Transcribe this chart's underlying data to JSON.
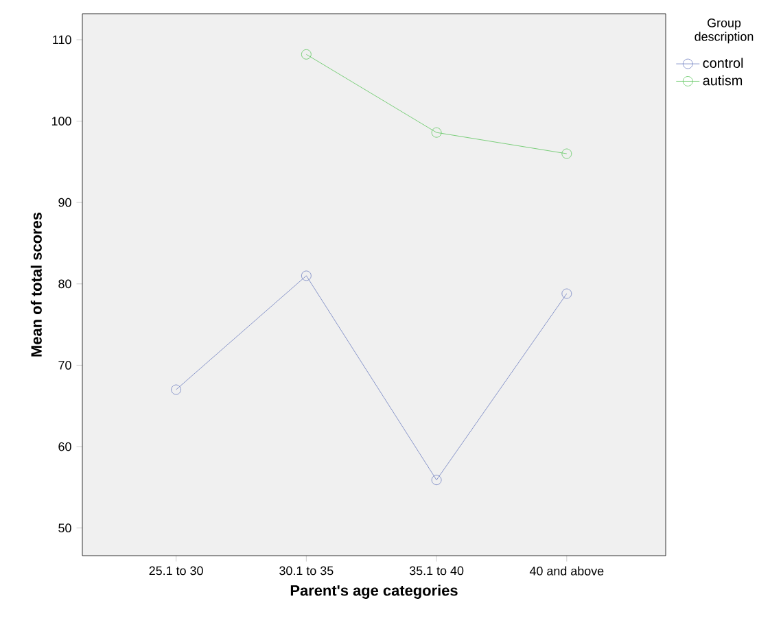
{
  "chart_data": {
    "type": "line",
    "xlabel": "Parent's age categories",
    "ylabel": "Mean of total scores",
    "legend_title": "Group description",
    "categories": [
      "25.1 to 30",
      "30.1 to 35",
      "35.1 to 40",
      "40 and above"
    ],
    "series": [
      {
        "name": "control",
        "color": "#6f7fc0",
        "values": [
          67.0,
          81.0,
          55.9,
          78.8
        ]
      },
      {
        "name": "autism",
        "color": "#5cc55c",
        "values": [
          null,
          108.2,
          98.6,
          96.0
        ]
      }
    ],
    "ylim": [
      46.6,
      113.2
    ],
    "yticks": [
      50,
      60,
      70,
      80,
      90,
      100,
      110
    ],
    "marker": "circle",
    "line_style": "solid",
    "legend": "right",
    "grid": false
  }
}
